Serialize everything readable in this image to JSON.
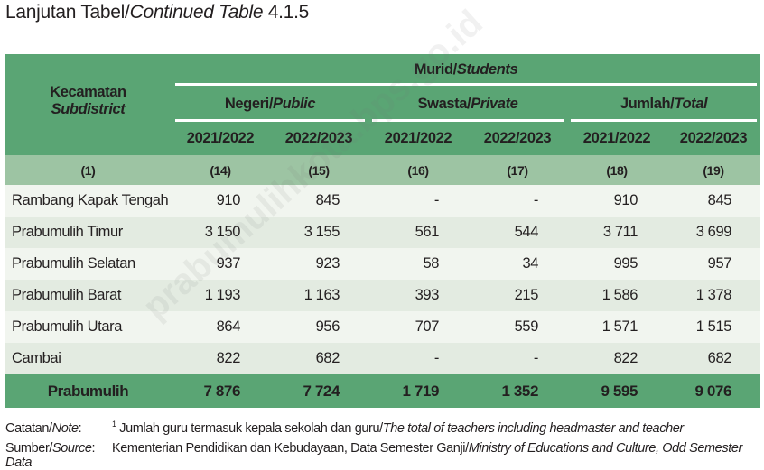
{
  "title": {
    "text": "Lanjutan Tabel/",
    "italic": "Continued Table",
    "number": " 4.1.5"
  },
  "header": {
    "subdistrict_id": "Kecamatan",
    "subdistrict_en": "Subdistrict",
    "group_id": "Murid/",
    "group_en": "Students",
    "public_id": "Negeri/",
    "public_en": "Public",
    "private_id": "Swasta/",
    "private_en": "Private",
    "total_id": "Jumlah/",
    "total_en": "Total",
    "years": [
      "2021/2022",
      "2022/2023",
      "2021/2022",
      "2022/2023",
      "2021/2022",
      "2022/2023"
    ],
    "col_numbers": [
      "(1)",
      "(14)",
      "(15)",
      "(16)",
      "(17)",
      "(18)",
      "(19)"
    ]
  },
  "rows": [
    {
      "name": "Rambang Kapak Tengah",
      "values": [
        "910",
        "845",
        "-",
        "-",
        "910",
        "845"
      ]
    },
    {
      "name": "Prabumulih Timur",
      "values": [
        "3 150",
        "3 155",
        "561",
        "544",
        "3 711",
        "3 699"
      ]
    },
    {
      "name": "Prabumulih Selatan",
      "values": [
        "937",
        "923",
        "58",
        "34",
        "995",
        "957"
      ]
    },
    {
      "name": "Prabumulih Barat",
      "values": [
        "1 193",
        "1 163",
        "393",
        "215",
        "1 586",
        "1 378"
      ]
    },
    {
      "name": "Prabumulih Utara",
      "values": [
        "864",
        "956",
        "707",
        "559",
        "1 571",
        "1 515"
      ]
    },
    {
      "name": "Cambai",
      "values": [
        "822",
        "682",
        "-",
        "-",
        "822",
        "682"
      ]
    }
  ],
  "total": {
    "name": "Prabumulih",
    "values": [
      "7 876",
      "7 724",
      "1 719",
      "1 352",
      "9 595",
      "9 076"
    ]
  },
  "notes": {
    "note_label": "Catatan/",
    "note_label_en": "Note",
    "note_sup": "1",
    "note_text": " Jumlah guru termasuk kepala sekolah dan guru/",
    "note_text_en": "The total of teachers including headmaster and teacher",
    "source_label": "Sumber/",
    "source_label_en": "Source",
    "source_text": "Kementerian Pendidikan dan Kebudayaan, Data Semester Ganji/",
    "source_text_en": "Ministry of Educations and Culture, Odd Semester Data"
  },
  "watermark": "prabumulihkota.bps.go.id"
}
